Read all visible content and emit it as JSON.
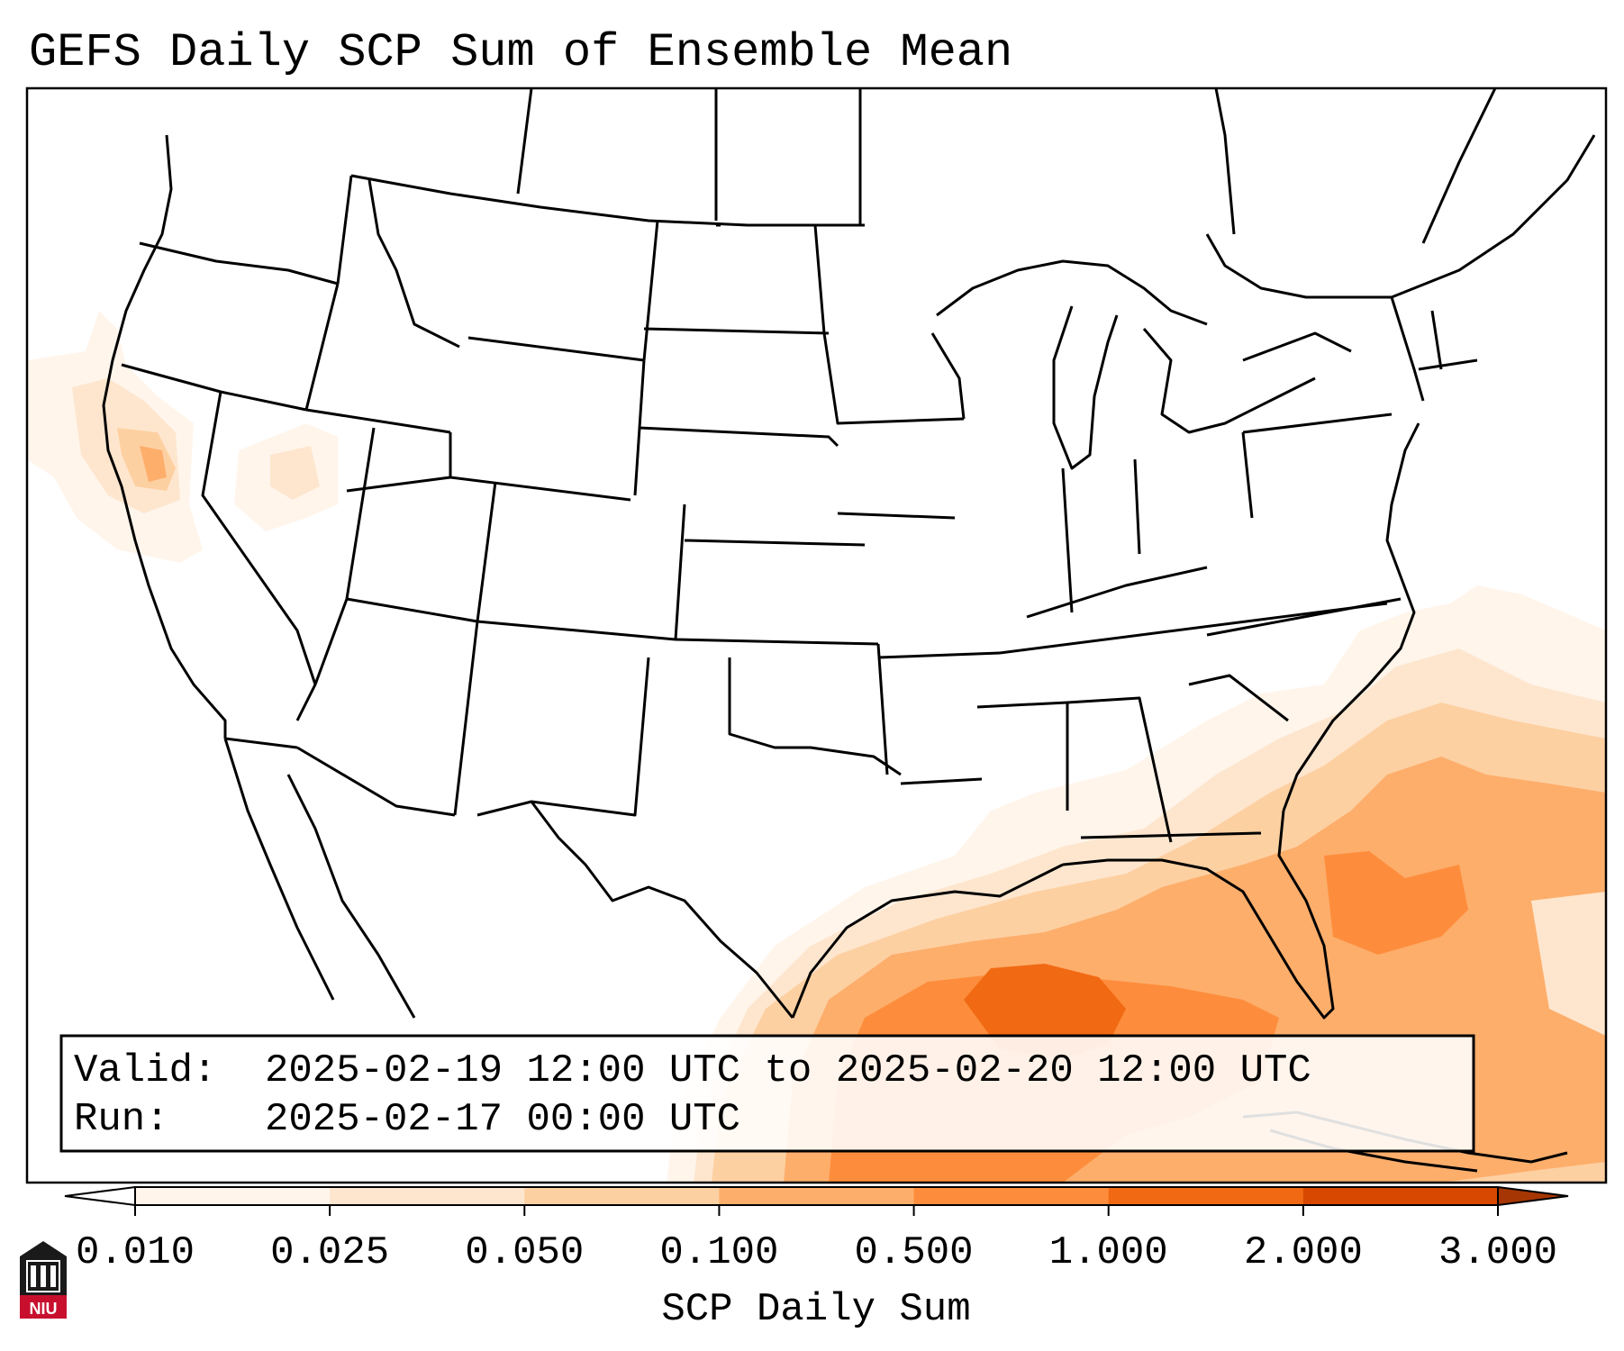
{
  "title": "GEFS Daily SCP Sum of Ensemble Mean",
  "info_box": {
    "valid_label": "Valid:",
    "valid_value": "2025-02-19 12:00 UTC to 2025-02-20 12:00 UTC",
    "run_label": "Run:",
    "run_value": "2025-02-17 00:00 UTC"
  },
  "colorbar": {
    "label": "SCP Daily Sum",
    "ticks": [
      "0.010",
      "0.025",
      "0.050",
      "0.100",
      "0.500",
      "1.000",
      "2.000",
      "3.000"
    ],
    "colors": [
      "#fff5eb",
      "#fee6ce",
      "#fdd0a2",
      "#fdae6b",
      "#fd8d3c",
      "#f16913",
      "#d94801",
      "#a63603"
    ]
  },
  "logo": {
    "text": "NIU",
    "color": "#c8102e"
  }
}
